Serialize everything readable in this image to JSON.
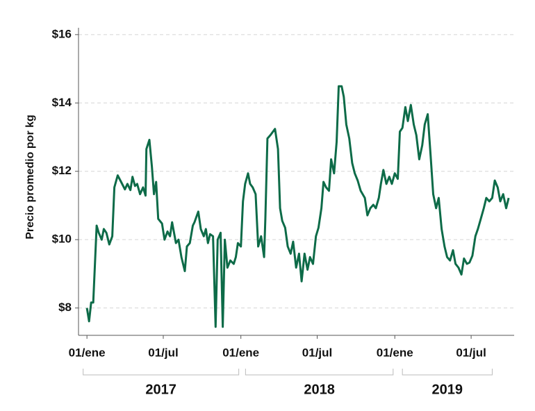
{
  "chart_data": {
    "type": "line",
    "y_label": "Precio promedio por kg",
    "color": "#0d6b48",
    "grid": true,
    "xlim": [
      "2016-12-12",
      "2019-10-11"
    ],
    "ylim": [
      7.2,
      16.2
    ],
    "yticks": [
      {
        "value": 8,
        "label": "$8"
      },
      {
        "value": 10,
        "label": "$10"
      },
      {
        "value": 12,
        "label": "$12"
      },
      {
        "value": 14,
        "label": "$14"
      },
      {
        "value": 16,
        "label": "$16"
      }
    ],
    "xticks": [
      {
        "value": "2017-01-01",
        "label": "01/ene"
      },
      {
        "value": "2017-07-01",
        "label": "01/jul"
      },
      {
        "value": "2018-01-01",
        "label": "01/ene"
      },
      {
        "value": "2018-07-01",
        "label": "01/jul"
      },
      {
        "value": "2019-01-01",
        "label": "01/ene"
      },
      {
        "value": "2019-07-01",
        "label": "01/jul"
      }
    ],
    "year_groups": [
      {
        "label": "2017",
        "start": "2016-12-23",
        "end": "2017-12-27"
      },
      {
        "label": "2018",
        "start": "2018-01-12",
        "end": "2018-12-28"
      },
      {
        "label": "2019",
        "start": "2019-01-19",
        "end": "2019-08-20"
      }
    ],
    "x": [
      "2017-01-01",
      "2017-01-06",
      "2017-01-11",
      "2017-01-16",
      "2017-01-24",
      "2017-01-29",
      "2017-02-05",
      "2017-02-10",
      "2017-02-16",
      "2017-02-23",
      "2017-03-02",
      "2017-03-07",
      "2017-03-15",
      "2017-03-23",
      "2017-04-01",
      "2017-04-07",
      "2017-04-14",
      "2017-04-19",
      "2017-04-25",
      "2017-04-30",
      "2017-05-07",
      "2017-05-14",
      "2017-05-20",
      "2017-05-22",
      "2017-05-29",
      "2017-06-04",
      "2017-06-09",
      "2017-06-14",
      "2017-06-19",
      "2017-06-28",
      "2017-07-04",
      "2017-07-11",
      "2017-07-17",
      "2017-07-22",
      "2017-07-31",
      "2017-08-06",
      "2017-08-13",
      "2017-08-21",
      "2017-08-26",
      "2017-09-02",
      "2017-09-09",
      "2017-09-13",
      "2017-09-22",
      "2017-09-28",
      "2017-10-05",
      "2017-10-10",
      "2017-10-15",
      "2017-10-20",
      "2017-10-27",
      "2017-11-02",
      "2017-11-07",
      "2017-11-14",
      "2017-11-19",
      "2017-11-24",
      "2017-11-30",
      "2017-12-07",
      "2017-12-15",
      "2017-12-20",
      "2017-12-25",
      "2018-01-01",
      "2018-01-06",
      "2018-01-11",
      "2018-01-18",
      "2018-01-23",
      "2018-01-29",
      "2018-02-05",
      "2018-02-11",
      "2018-02-18",
      "2018-02-25",
      "2018-02-28",
      "2018-03-05",
      "2018-03-12",
      "2018-03-23",
      "2018-03-30",
      "2018-04-04",
      "2018-04-09",
      "2018-04-16",
      "2018-04-22",
      "2018-04-29",
      "2018-05-05",
      "2018-05-12",
      "2018-05-19",
      "2018-05-25",
      "2018-06-01",
      "2018-06-08",
      "2018-06-14",
      "2018-06-21",
      "2018-06-28",
      "2018-07-04",
      "2018-07-11",
      "2018-07-16",
      "2018-07-22",
      "2018-07-29",
      "2018-08-03",
      "2018-08-10",
      "2018-08-16",
      "2018-08-21",
      "2018-08-28",
      "2018-09-02",
      "2018-09-08",
      "2018-09-15",
      "2018-09-22",
      "2018-09-28",
      "2018-10-05",
      "2018-10-12",
      "2018-10-22",
      "2018-10-28",
      "2018-11-04",
      "2018-11-11",
      "2018-11-17",
      "2018-11-24",
      "2018-11-29",
      "2018-12-05",
      "2018-12-12",
      "2018-12-19",
      "2018-12-25",
      "2019-01-01",
      "2019-01-08",
      "2019-01-13",
      "2019-01-19",
      "2019-01-26",
      "2019-02-01",
      "2019-02-08",
      "2019-02-15",
      "2019-02-21",
      "2019-02-28",
      "2019-03-07",
      "2019-03-13",
      "2019-03-20",
      "2019-03-27",
      "2019-04-02",
      "2019-04-09",
      "2019-04-15",
      "2019-04-22",
      "2019-04-29",
      "2019-05-05",
      "2019-05-12",
      "2019-05-19",
      "2019-05-25",
      "2019-06-01",
      "2019-06-08",
      "2019-06-14",
      "2019-06-21",
      "2019-06-27",
      "2019-07-04",
      "2019-07-11",
      "2019-07-17",
      "2019-07-24",
      "2019-07-31",
      "2019-08-06",
      "2019-08-13",
      "2019-08-20",
      "2019-08-26",
      "2019-09-02",
      "2019-09-08",
      "2019-09-15",
      "2019-09-22",
      "2019-09-28"
    ],
    "values": [
      8.0,
      7.61,
      8.16,
      8.16,
      10.41,
      10.2,
      10.0,
      10.31,
      10.2,
      9.86,
      10.1,
      11.53,
      11.88,
      11.69,
      11.47,
      11.63,
      11.45,
      11.84,
      11.57,
      11.63,
      11.33,
      11.53,
      11.29,
      12.65,
      12.92,
      12.14,
      11.33,
      11.69,
      10.61,
      10.47,
      10.0,
      10.24,
      10.1,
      10.51,
      9.9,
      10.0,
      9.49,
      9.08,
      9.8,
      9.9,
      10.41,
      10.51,
      10.82,
      10.31,
      10.1,
      10.31,
      9.9,
      10.16,
      10.1,
      7.45,
      10.0,
      10.2,
      7.45,
      10.0,
      9.18,
      9.39,
      9.29,
      9.49,
      9.9,
      9.8,
      11.12,
      11.63,
      11.94,
      11.63,
      11.53,
      11.33,
      9.8,
      10.1,
      9.49,
      10.61,
      12.96,
      13.06,
      13.24,
      12.65,
      10.92,
      10.55,
      10.35,
      9.8,
      9.59,
      9.94,
      9.18,
      9.59,
      8.78,
      9.59,
      9.12,
      9.49,
      9.29,
      10.1,
      10.35,
      10.92,
      11.69,
      11.53,
      11.43,
      12.35,
      11.94,
      12.86,
      14.49,
      14.49,
      14.18,
      13.37,
      12.96,
      12.24,
      11.94,
      11.73,
      11.43,
      11.22,
      10.71,
      10.92,
      11.02,
      10.92,
      11.22,
      11.63,
      12.04,
      11.63,
      11.84,
      11.63,
      11.94,
      11.78,
      13.16,
      13.27,
      13.88,
      13.47,
      13.94,
      13.37,
      13.06,
      12.35,
      12.76,
      13.37,
      13.67,
      12.45,
      11.33,
      10.92,
      11.22,
      10.31,
      9.8,
      9.49,
      9.39,
      9.69,
      9.29,
      9.18,
      8.98,
      9.45,
      9.29,
      9.33,
      9.53,
      10.1,
      10.31,
      10.61,
      10.92,
      11.22,
      11.12,
      11.22,
      11.73,
      11.53,
      11.12,
      11.33,
      10.92,
      11.22
    ]
  }
}
